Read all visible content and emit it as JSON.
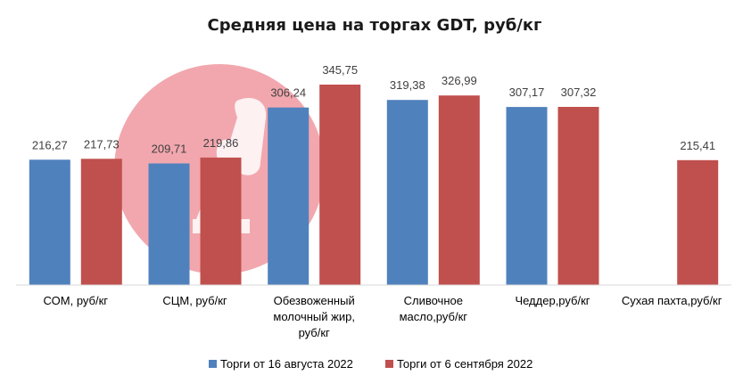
{
  "chart_data": {
    "type": "bar",
    "title": "Средняя цена на торгах GDT, руб/кг",
    "categories": [
      [
        "СОМ, руб/кг"
      ],
      [
        "СЦМ, руб/кг"
      ],
      [
        "Обезвоженный",
        "молочный жир,",
        "руб/кг"
      ],
      [
        "Сливочное",
        "масло,руб/кг"
      ],
      [
        "Чеддер,руб/кг"
      ],
      [
        "Сухая пахта,руб/кг"
      ]
    ],
    "series": [
      {
        "name": "Торги от 16 августа 2022",
        "color": "#4f81bd",
        "values": [
          216.27,
          209.71,
          306.24,
          319.38,
          307.17,
          null
        ],
        "labels": [
          "216,27",
          "209,71",
          "306,24",
          "319,38",
          "307,17",
          ""
        ]
      },
      {
        "name": "Торги от 6 сентября 2022",
        "color": "#c0504d",
        "values": [
          217.73,
          219.86,
          345.75,
          326.99,
          307.32,
          215.41
        ],
        "labels": [
          "217,73",
          "219,86",
          "345,75",
          "326,99",
          "307,32",
          "215,41"
        ]
      }
    ],
    "ylim": [
      0,
      350
    ],
    "grid": false,
    "legend_position": "bottom",
    "xlabel": "",
    "ylabel": ""
  }
}
